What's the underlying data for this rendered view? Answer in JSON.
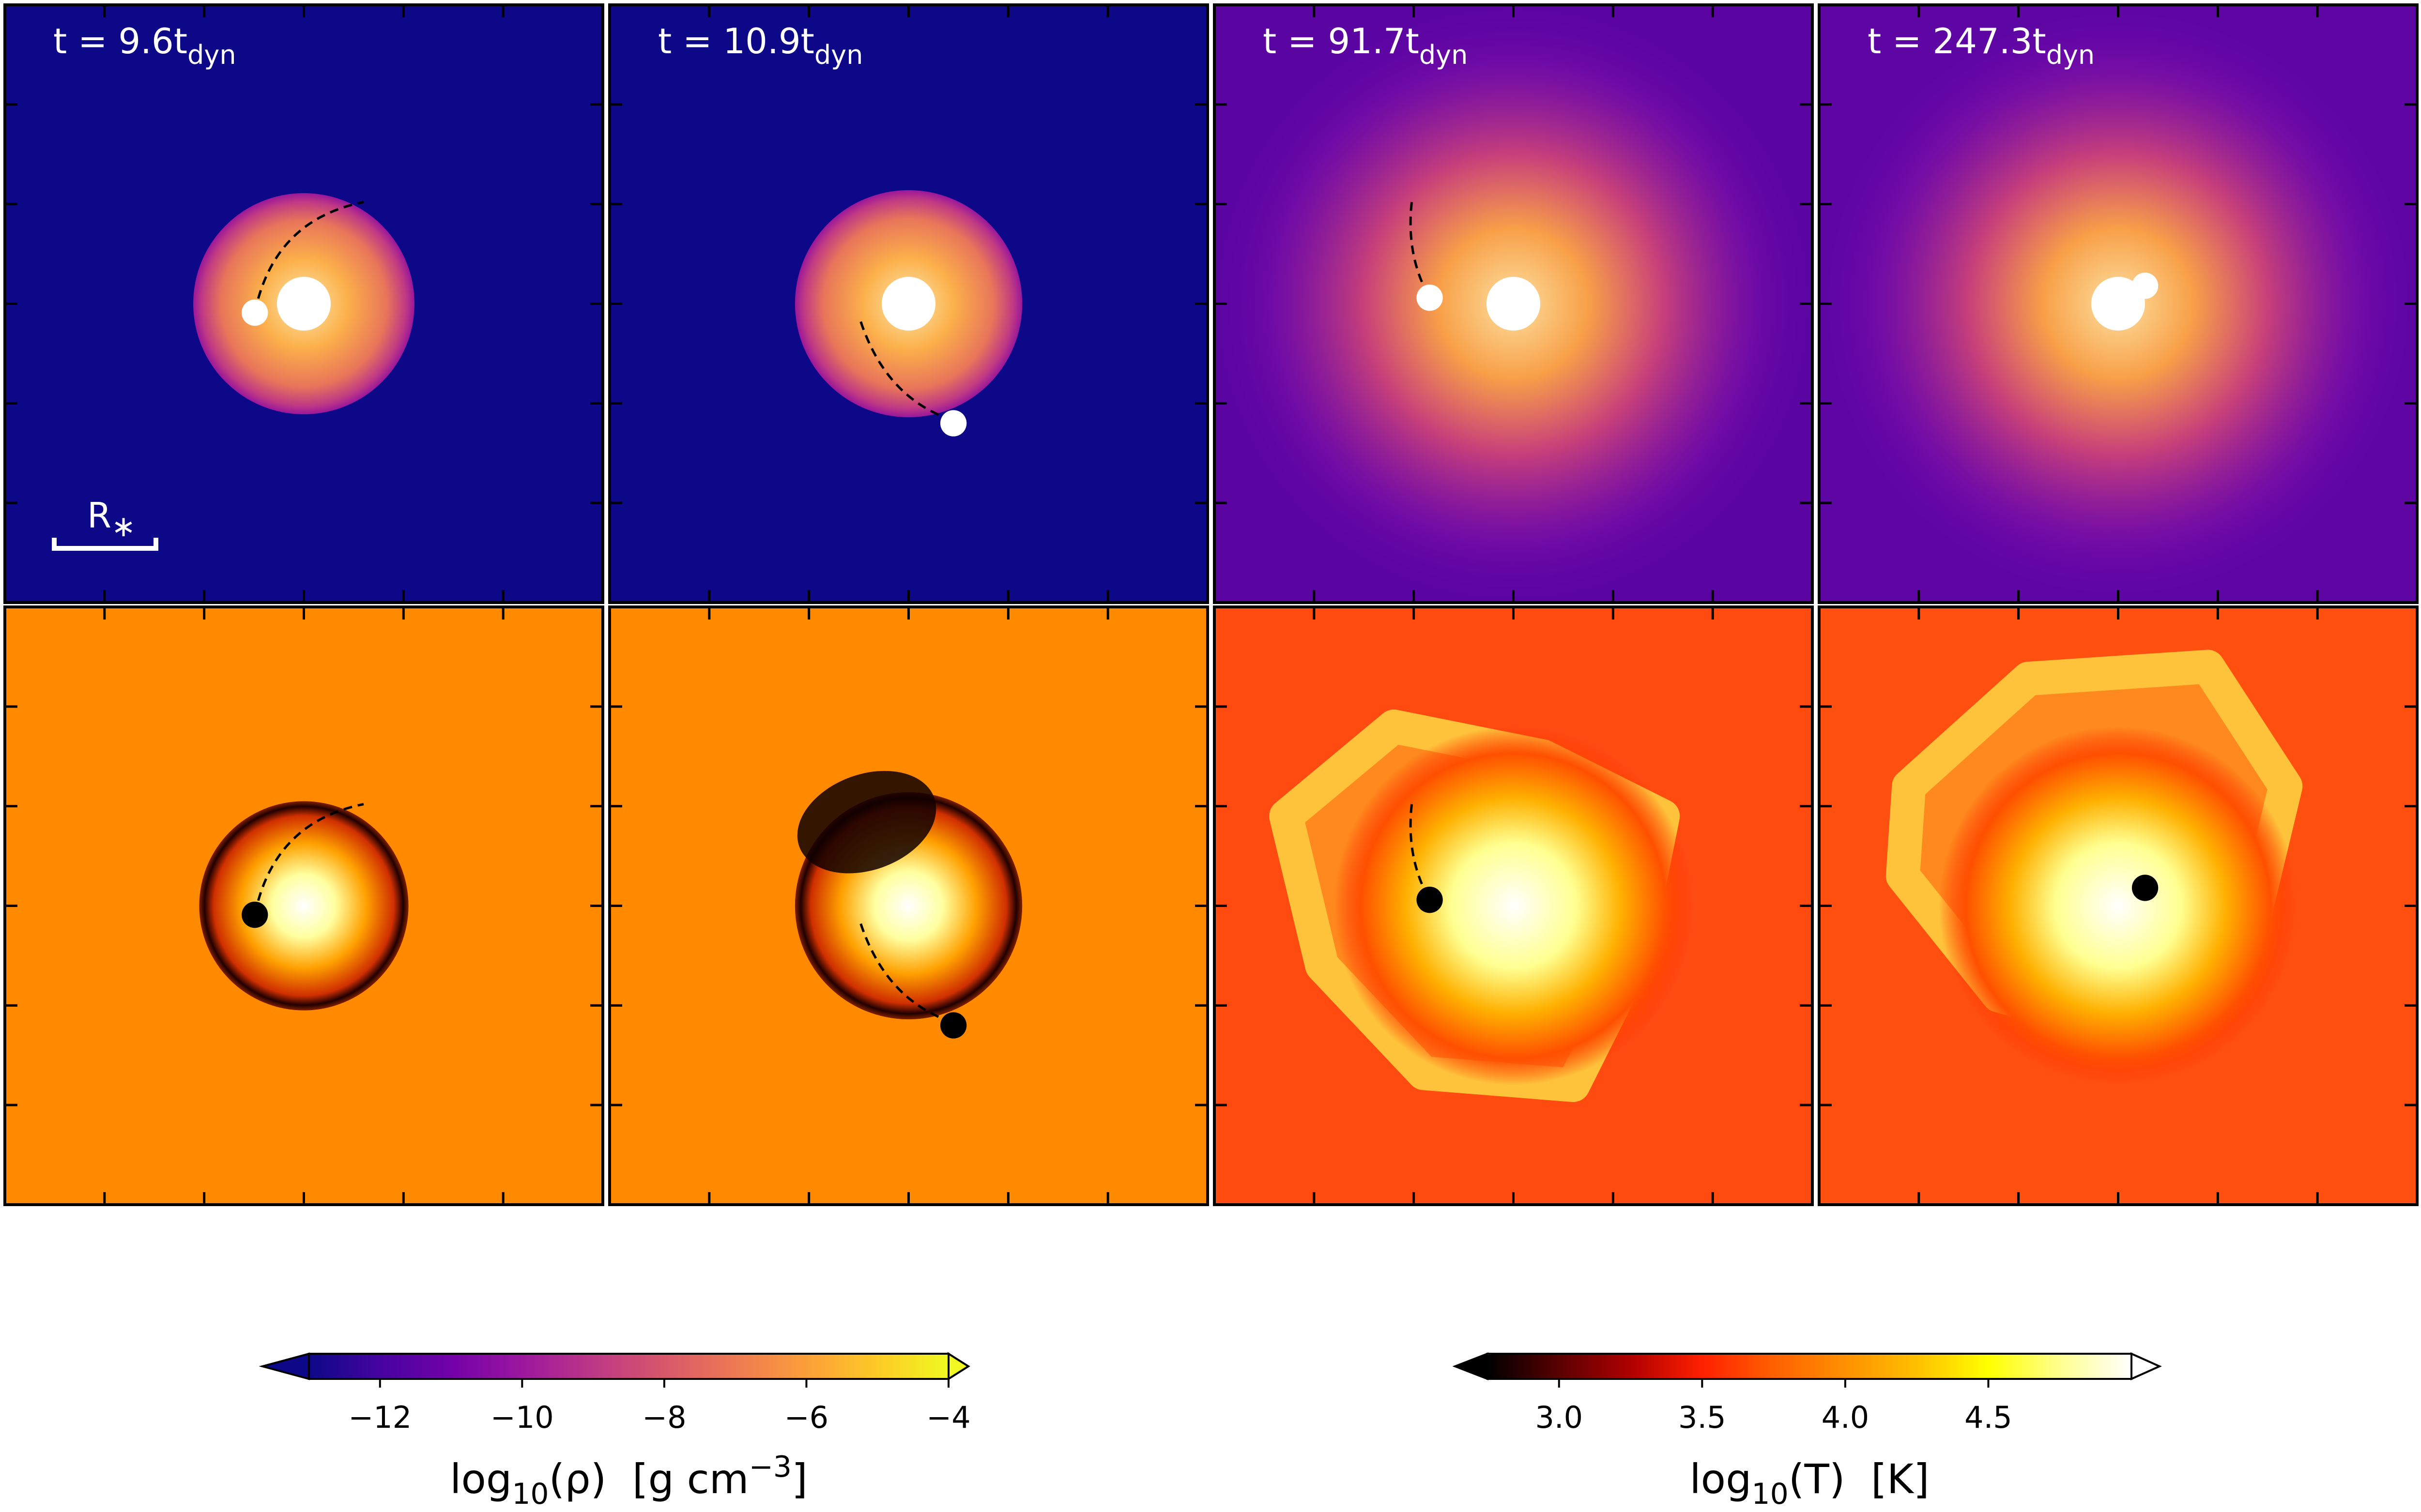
{
  "chart_data": {
    "type": "image-panels",
    "panels": [
      {
        "label": "t = 9.6t",
        "subscript": "dyn"
      },
      {
        "label": "t = 10.9t",
        "subscript": "dyn"
      },
      {
        "label": "t = 91.7t",
        "subscript": "dyn"
      },
      {
        "label": "t = 247.3t",
        "subscript": "dyn"
      }
    ],
    "scale_bar": {
      "text": "R",
      "sub": "∗"
    },
    "colorbars": [
      {
        "label": {
          "text": "log",
          "sub": "10",
          "rest": "(ρ)  [g cm",
          "sup": "−3",
          "end": "]"
        },
        "lim": [
          -13,
          -4
        ],
        "ticks": [
          {
            "value": -12,
            "label": "−12"
          },
          {
            "value": -10,
            "label": "−10"
          },
          {
            "value": -8,
            "label": "−8"
          },
          {
            "value": -6,
            "label": "−6"
          },
          {
            "value": -4,
            "label": "−4"
          }
        ],
        "colors": [
          "#0d0887",
          "#46039f",
          "#7201a8",
          "#9c179e",
          "#bd3786",
          "#d8576b",
          "#ed7953",
          "#fb9f3a",
          "#fdca26",
          "#f0f921"
        ]
      },
      {
        "label": {
          "text": "log",
          "sub": "10",
          "rest": "(T)  [K]"
        },
        "lim": [
          2.75,
          5.0
        ],
        "ticks": [
          {
            "value": 3,
            "label": "3.0"
          },
          {
            "value": 3.5,
            "label": "3.5"
          },
          {
            "value": 4,
            "label": "4.0"
          },
          {
            "value": 4.5,
            "label": "4.5"
          }
        ],
        "colors": [
          "#000000",
          "#5a0000",
          "#b00000",
          "#ff2000",
          "#ff6000",
          "#ff9000",
          "#ffc000",
          "#ffff00",
          "#ffff90",
          "#ffffff"
        ]
      }
    ]
  }
}
